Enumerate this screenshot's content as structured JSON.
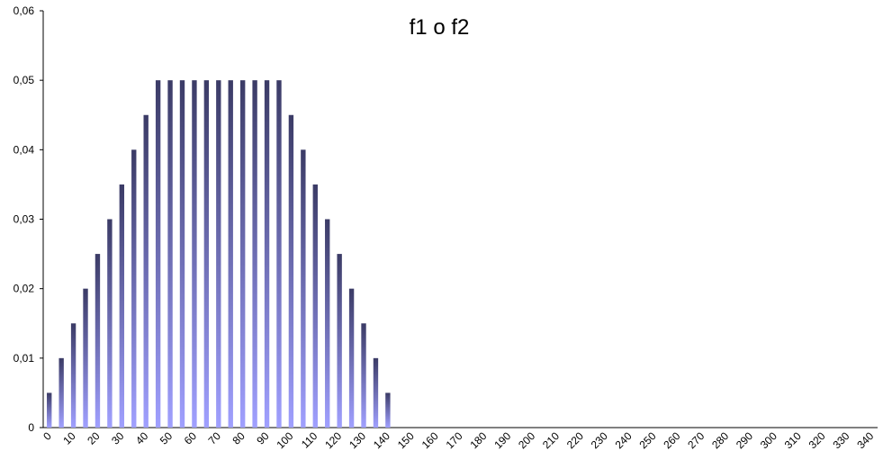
{
  "chart_data": {
    "type": "bar",
    "title": "f1 o f2",
    "categories": [
      0,
      null,
      10,
      null,
      20,
      null,
      30,
      null,
      40,
      null,
      50,
      null,
      60,
      null,
      70,
      null,
      80,
      null,
      90,
      null,
      100,
      null,
      110,
      null,
      120,
      null,
      130,
      null,
      140,
      null,
      150,
      null,
      160,
      null,
      170,
      null,
      180,
      null,
      190,
      null,
      200,
      null,
      210,
      null,
      220,
      null,
      230,
      null,
      240,
      null,
      250,
      null,
      260,
      null,
      270,
      null,
      280,
      null,
      290,
      null,
      300,
      null,
      310,
      null,
      320,
      null,
      330,
      null,
      340
    ],
    "values": [
      0.005,
      0.01,
      0.015,
      0.02,
      0.025,
      0.03,
      0.035,
      0.04,
      0.045,
      0.05,
      0.05,
      0.05,
      0.05,
      0.05,
      0.05,
      0.05,
      0.05,
      0.05,
      0.05,
      0.05,
      0.045,
      0.04,
      0.035,
      0.03,
      0.025,
      0.02,
      0.015,
      0.01,
      0.005,
      0,
      0,
      0,
      0,
      0,
      0,
      0,
      0,
      0,
      0,
      0,
      0,
      0,
      0,
      0,
      0,
      0,
      0,
      0,
      0,
      0,
      0,
      0,
      0,
      0,
      0,
      0,
      0,
      0,
      0,
      0,
      0,
      0,
      0,
      0,
      0,
      0,
      0,
      0,
      0
    ],
    "color": [
      "#3b3b66",
      "#a0a0ff"
    ],
    "ylim": [
      0,
      0.06
    ],
    "yticks": [
      0,
      {
        "value": 0.01,
        "label": "0,01"
      },
      {
        "value": 0.02,
        "label": "0,02"
      },
      {
        "value": 0.03,
        "label": "0,03"
      },
      {
        "value": 0.04,
        "label": "0,04"
      },
      {
        "value": 0.05,
        "label": "0,05"
      },
      {
        "value": 0.06,
        "label": "0,06"
      }
    ],
    "grid": false
  }
}
